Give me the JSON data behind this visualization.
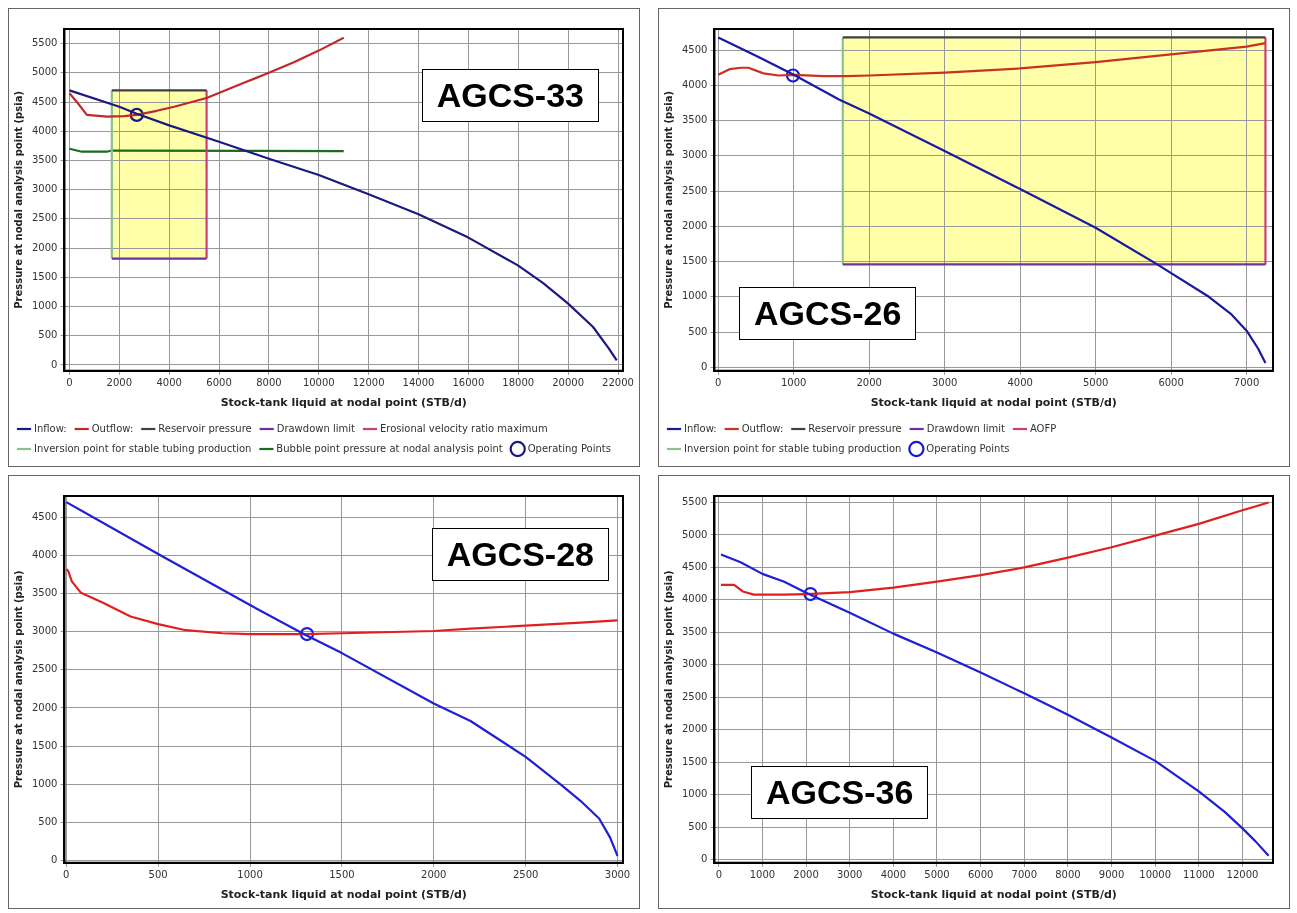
{
  "chart_data": [
    {
      "type": "line",
      "xlabel": "Stock-tank liquid at nodal point (STB/d)",
      "ylabel": "Pressure at nodal analysis point (psia)",
      "annotations": [
        "AGCS-33"
      ],
      "xlim": [
        -200,
        22200
      ],
      "ylim": [
        -100,
        5750
      ],
      "xticks": [
        0,
        2000,
        4000,
        6000,
        8000,
        10000,
        12000,
        14000,
        16000,
        18000,
        20000,
        22000
      ],
      "yticks": [
        0,
        500,
        1000,
        1500,
        2000,
        2500,
        3000,
        3500,
        4000,
        4500,
        5000,
        5500
      ],
      "grid": true,
      "legend": "bottom",
      "series": [
        {
          "name": "Inflow:",
          "color": "#1a1a80",
          "x": [
            0,
            2000,
            2700,
            4000,
            6000,
            8000,
            10000,
            12000,
            14000,
            16000,
            18000,
            19000,
            20000,
            21000,
            21600,
            21950
          ],
          "values": [
            4700,
            4420,
            4300,
            4100,
            3820,
            3530,
            3250,
            2920,
            2580,
            2180,
            1700,
            1400,
            1050,
            650,
            300,
            80
          ]
        },
        {
          "name": "Outflow:",
          "color": "#c0282d",
          "x": [
            0,
            300,
            700,
            1500,
            2200,
            2700,
            3500,
            4200,
            5500,
            7000,
            8000,
            9000,
            10000,
            11000
          ],
          "values": [
            4650,
            4500,
            4280,
            4250,
            4260,
            4280,
            4350,
            4420,
            4570,
            4830,
            5000,
            5180,
            5380,
            5600
          ]
        },
        {
          "name": "Reservoir pressure",
          "color": "#404040",
          "x": [
            1700,
            5500
          ],
          "values": [
            4700,
            4700
          ]
        },
        {
          "name": "Drawdown limit",
          "color": "#7030a0",
          "x": [
            1700,
            5500
          ],
          "values": [
            1820,
            1820
          ]
        },
        {
          "name": "Erosional velocity ratio maximum",
          "color": "#d03c78",
          "x": [
            5500,
            5500
          ],
          "values": [
            1820,
            4700
          ]
        },
        {
          "name": "Inversion point for stable tubing production",
          "color": "#8cc08c",
          "x": [
            1700,
            1700
          ],
          "values": [
            1820,
            4700
          ]
        },
        {
          "name": "Bubble point pressure at nodal analysis point",
          "color": "#1e6b1e",
          "x": [
            0,
            500,
            1500,
            1700,
            11000
          ],
          "values": [
            3700,
            3650,
            3650,
            3670,
            3660
          ]
        },
        {
          "name": "Operating Points",
          "type": "scatter",
          "marker": "circle",
          "color": "#1a1a80",
          "x": [
            2700
          ],
          "values": [
            4280
          ]
        }
      ]
    },
    {
      "type": "line",
      "xlabel": "Stock-tank liquid at nodal point (STB/d)",
      "ylabel": "Pressure at nodal analysis point (psia)",
      "annotations": [
        "AGCS-26"
      ],
      "xlim": [
        -50,
        7350
      ],
      "ylim": [
        -50,
        4800
      ],
      "xticks": [
        0,
        1000,
        2000,
        3000,
        4000,
        5000,
        6000,
        7000
      ],
      "yticks": [
        0,
        500,
        1000,
        1500,
        2000,
        2500,
        3000,
        3500,
        4000,
        4500
      ],
      "grid": true,
      "legend": "bottom",
      "series": [
        {
          "name": "Inflow:",
          "color": "#1a1aa0",
          "x": [
            0,
            500,
            1000,
            1600,
            2000,
            3000,
            4000,
            5000,
            5800,
            6500,
            6800,
            7000,
            7150,
            7250
          ],
          "values": [
            4680,
            4420,
            4150,
            3800,
            3600,
            3070,
            2530,
            1980,
            1470,
            1000,
            750,
            520,
            270,
            60
          ]
        },
        {
          "name": "Outflow:",
          "color": "#c8321e",
          "x": [
            0,
            150,
            300,
            400,
            600,
            800,
            1000,
            1400,
            1700,
            2000,
            3000,
            4000,
            5000,
            6000,
            7000,
            7250
          ],
          "values": [
            4150,
            4230,
            4250,
            4250,
            4170,
            4140,
            4150,
            4130,
            4130,
            4140,
            4180,
            4240,
            4330,
            4440,
            4550,
            4600
          ]
        },
        {
          "name": "Reservoir pressure",
          "color": "#404040",
          "x": [
            1650,
            7250
          ],
          "values": [
            4680,
            4680
          ]
        },
        {
          "name": "Drawdown limit",
          "color": "#7030a0",
          "x": [
            1650,
            7250
          ],
          "values": [
            1460,
            1460
          ]
        },
        {
          "name": "AOFP",
          "color": "#d03c78",
          "x": [
            7250,
            7250
          ],
          "values": [
            1460,
            4680
          ]
        },
        {
          "name": "Inversion point for stable tubing production",
          "color": "#8cc08c",
          "x": [
            1650,
            1650
          ],
          "values": [
            1460,
            4680
          ]
        },
        {
          "name": "Operating Points",
          "type": "scatter",
          "marker": "circle",
          "color": "#1a1ad0",
          "x": [
            990
          ],
          "values": [
            4140
          ]
        }
      ]
    },
    {
      "type": "line",
      "xlabel": "Stock-tank liquid at nodal point (STB/d)",
      "ylabel": "Pressure at nodal analysis point (psia)",
      "annotations": [
        "AGCS-28"
      ],
      "xlim": [
        -10,
        3030
      ],
      "ylim": [
        -30,
        4780
      ],
      "xticks": [
        0,
        500,
        1000,
        1500,
        2000,
        2500,
        3000
      ],
      "yticks": [
        0,
        500,
        1000,
        1500,
        2000,
        2500,
        3000,
        3500,
        4000,
        4500
      ],
      "grid": true,
      "legend": false,
      "series": [
        {
          "color": "#1f1fd6",
          "x": [
            0,
            500,
            1000,
            1300,
            1500,
            2000,
            2200,
            2500,
            2700,
            2800,
            2900,
            2960,
            3000
          ],
          "values": [
            4700,
            4020,
            3350,
            2960,
            2720,
            2060,
            1830,
            1360,
            980,
            780,
            550,
            300,
            60
          ]
        },
        {
          "color": "#e02020",
          "x": [
            0,
            10,
            30,
            80,
            200,
            350,
            500,
            650,
            850,
            1000,
            1300,
            1500,
            2000,
            2200,
            2500,
            2800,
            3000
          ],
          "values": [
            3820,
            3800,
            3660,
            3510,
            3380,
            3200,
            3100,
            3020,
            2980,
            2970,
            2970,
            2980,
            3010,
            3040,
            3080,
            3120,
            3150
          ]
        },
        {
          "type": "scatter",
          "marker": "circle",
          "color": "#1f1fd6",
          "x": [
            1310
          ],
          "values": [
            2970
          ]
        }
      ]
    },
    {
      "type": "line",
      "xlabel": "Stock-tank liquid at nodal point (STB/d)",
      "ylabel": "Pressure at nodal analysis point (psia)",
      "annotations": [
        "AGCS-36"
      ],
      "xlim": [
        -100,
        12700
      ],
      "ylim": [
        -50,
        5600
      ],
      "xticks": [
        0,
        1000,
        2000,
        3000,
        4000,
        5000,
        6000,
        7000,
        8000,
        9000,
        10000,
        11000,
        12000
      ],
      "yticks": [
        0,
        500,
        1000,
        1500,
        2000,
        2500,
        3000,
        3500,
        4000,
        4500,
        5000,
        5500
      ],
      "grid": true,
      "legend": false,
      "series": [
        {
          "color": "#1f1fd6",
          "x": [
            50,
            500,
            1000,
            1500,
            2000,
            3000,
            4000,
            5000,
            6000,
            7000,
            8000,
            9000,
            10000,
            11000,
            11600,
            12000,
            12300,
            12600
          ],
          "values": [
            4700,
            4580,
            4400,
            4280,
            4110,
            3800,
            3480,
            3190,
            2880,
            2560,
            2230,
            1880,
            1520,
            1050,
            730,
            480,
            280,
            60
          ]
        },
        {
          "color": "#e02020",
          "x": [
            50,
            350,
            550,
            800,
            1500,
            2000,
            3000,
            4000,
            5000,
            6000,
            7000,
            8000,
            9000,
            10000,
            11000,
            12000,
            12600
          ],
          "values": [
            4230,
            4230,
            4130,
            4080,
            4080,
            4090,
            4120,
            4190,
            4280,
            4380,
            4500,
            4650,
            4810,
            4990,
            5170,
            5380,
            5500
          ]
        },
        {
          "type": "scatter",
          "marker": "circle",
          "color": "#1f1fd6",
          "x": [
            2100
          ],
          "values": [
            4090
          ]
        }
      ]
    }
  ]
}
